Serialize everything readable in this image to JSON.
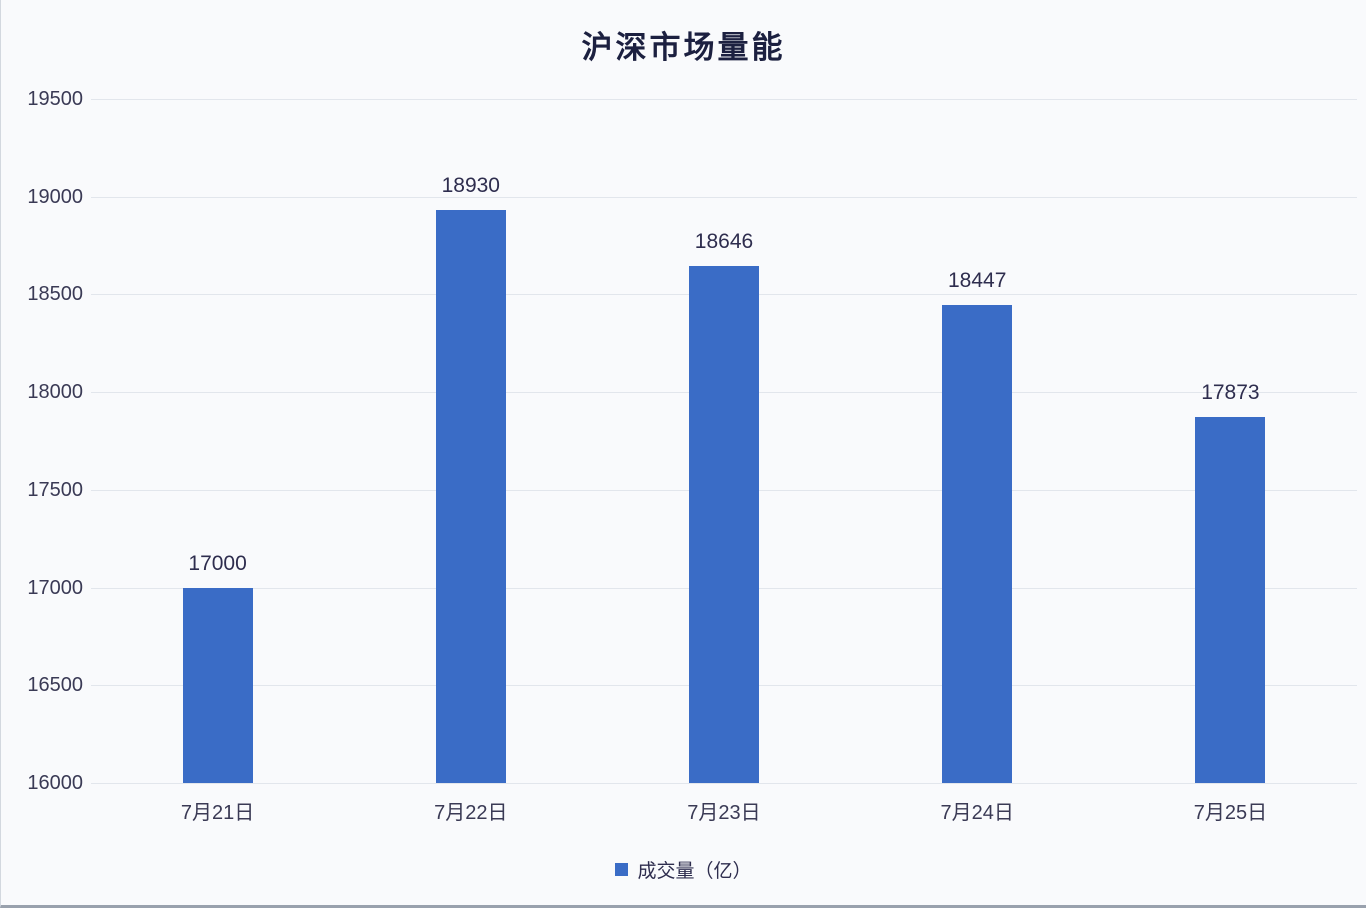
{
  "chart_data": {
    "type": "bar",
    "title": "沪深市场量能",
    "categories": [
      "7月21日",
      "7月22日",
      "7月23日",
      "7月24日",
      "7月25日"
    ],
    "series": [
      {
        "name": "成交量（亿）",
        "values": [
          17000,
          18930,
          18646,
          18447,
          17873
        ]
      }
    ],
    "data_labels": [
      "17000",
      "18930",
      "18646",
      "18447",
      "17873"
    ],
    "ylabel": "",
    "xlabel": "",
    "ylim": [
      16000,
      19500
    ],
    "yticks": [
      16000,
      16500,
      17000,
      17500,
      18000,
      18500,
      19000,
      19500
    ],
    "grid": true,
    "legend_position": "bottom",
    "bar_color": "#3a6cc6",
    "background_color": "#f9fafc",
    "gridline_color": "#e2e6ec",
    "text_color": "#2e2d4e"
  },
  "legend": {
    "marker_icon": "blue-square",
    "label": "成交量（亿）"
  }
}
